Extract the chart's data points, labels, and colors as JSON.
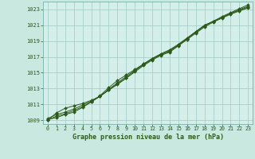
{
  "title": "Graphe pression niveau de la mer (hPa)",
  "background_color": "#c8e8e0",
  "plot_bg_color": "#d4eeea",
  "grid_color": "#a0c8c4",
  "line_color": "#2d5a1b",
  "xlim": [
    -0.5,
    23.5
  ],
  "ylim": [
    1008.5,
    1024.0
  ],
  "xticks": [
    0,
    1,
    2,
    3,
    4,
    5,
    6,
    7,
    8,
    9,
    10,
    11,
    12,
    13,
    14,
    15,
    16,
    17,
    18,
    19,
    20,
    21,
    22,
    23
  ],
  "yticks": [
    1009,
    1011,
    1013,
    1015,
    1017,
    1019,
    1021,
    1023
  ],
  "series": [
    [
      1009.2,
      1009.7,
      1010.0,
      1010.4,
      1010.9,
      1011.4,
      1012.0,
      1012.8,
      1013.5,
      1014.3,
      1015.2,
      1016.1,
      1016.8,
      1017.3,
      1017.7,
      1018.5,
      1019.3,
      1020.1,
      1020.9,
      1021.5,
      1022.0,
      1022.5,
      1022.9,
      1023.3
    ],
    [
      1009.0,
      1009.9,
      1010.5,
      1010.8,
      1011.1,
      1011.5,
      1012.0,
      1012.8,
      1013.6,
      1014.3,
      1015.1,
      1015.9,
      1016.6,
      1017.2,
      1017.6,
      1018.4,
      1019.2,
      1020.0,
      1020.8,
      1021.4,
      1021.9,
      1022.4,
      1022.8,
      1023.2
    ],
    [
      1009.1,
      1009.3,
      1009.7,
      1010.0,
      1010.6,
      1011.3,
      1012.1,
      1013.1,
      1014.0,
      1014.7,
      1015.4,
      1016.1,
      1016.8,
      1017.4,
      1017.9,
      1018.6,
      1019.4,
      1020.2,
      1021.0,
      1021.5,
      1022.1,
      1022.6,
      1023.1,
      1023.6
    ],
    [
      1009.0,
      1009.5,
      1009.8,
      1010.2,
      1010.7,
      1011.3,
      1012.0,
      1012.9,
      1013.7,
      1014.5,
      1015.3,
      1016.0,
      1016.7,
      1017.3,
      1017.8,
      1018.5,
      1019.3,
      1020.2,
      1021.0,
      1021.5,
      1022.0,
      1022.5,
      1023.0,
      1023.4
    ]
  ]
}
